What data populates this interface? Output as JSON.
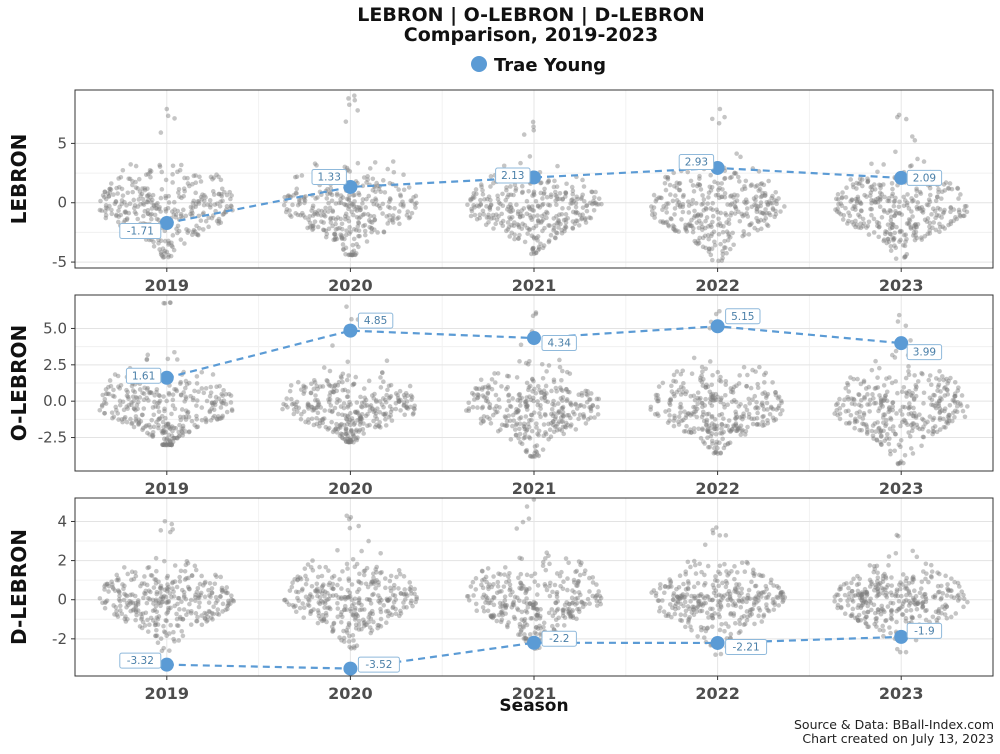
{
  "chart_data": {
    "type": "scatter",
    "title": "LEBRON | O-LEBRON | D-LEBRON",
    "subtitle": "Comparison, 2019-2023",
    "legend": {
      "label": "Trae Young",
      "color": "#5b9bd5",
      "placement": "top-center"
    },
    "xlabel": "Season",
    "categories": [
      "2019",
      "2020",
      "2021",
      "2022",
      "2023"
    ],
    "caption_line1": "Source & Data: BBall-Index.com",
    "caption_line2": "Chart created on July 13, 2023",
    "highlight_color": "#5b9bd5",
    "league_point_color": "#7f7f7f",
    "panels": [
      {
        "ylabel": "LEBRON",
        "ylim": [
          -5.5,
          9.5
        ],
        "yticks": [
          -5,
          0,
          5
        ],
        "ytick_labels": [
          "-5",
          "0",
          "5"
        ],
        "highlight_values": [
          -1.71,
          1.33,
          2.13,
          2.93,
          2.09
        ],
        "highlight_labels": [
          "-1.71",
          "1.33",
          "2.13",
          "2.93",
          "2.09"
        ],
        "league_distribution": {
          "points_per_season": 330,
          "min": [
            -4.6,
            -4.4,
            -4.3,
            -4.9,
            -4.7
          ],
          "max": [
            7.9,
            9.0,
            6.8,
            7.9,
            7.4
          ],
          "center": -0.5
        }
      },
      {
        "ylabel": "O-LEBRON",
        "ylim": [
          -4.8,
          7.3
        ],
        "yticks": [
          -2.5,
          0,
          2.5,
          5
        ],
        "ytick_labels": [
          "-2.5",
          "0.0",
          "2.5",
          "5.0"
        ],
        "highlight_values": [
          1.61,
          4.85,
          4.34,
          5.15,
          3.99
        ],
        "highlight_labels": [
          "1.61",
          "4.85",
          "4.34",
          "5.15",
          "3.99"
        ],
        "league_distribution": {
          "points_per_season": 330,
          "min": [
            -3.0,
            -2.8,
            -3.8,
            -3.6,
            -4.3
          ],
          "max": [
            6.8,
            6.5,
            6.1,
            6.2,
            5.9
          ],
          "center": -0.5
        }
      },
      {
        "ylabel": "D-LEBRON",
        "ylim": [
          -3.9,
          5.2
        ],
        "yticks": [
          -2,
          0,
          2,
          4
        ],
        "ytick_labels": [
          "-2",
          "0",
          "2",
          "4"
        ],
        "highlight_values": [
          -3.32,
          -3.52,
          -2.2,
          -2.21,
          -1.9
        ],
        "highlight_labels": [
          "-3.32",
          "-3.52",
          "-2.2",
          "-2.21",
          "-1.9"
        ],
        "league_distribution": {
          "points_per_season": 330,
          "min": [
            -2.6,
            -2.5,
            -2.5,
            -2.8,
            -2.7
          ],
          "max": [
            4.0,
            4.3,
            5.1,
            3.7,
            3.3
          ],
          "center": 0.0
        }
      }
    ]
  }
}
